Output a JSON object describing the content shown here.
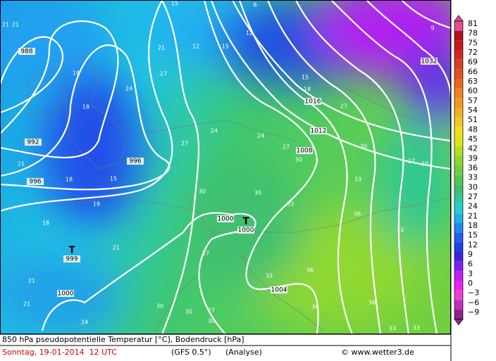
{
  "map": {
    "isobar_labels": [
      "988",
      "992",
      "996",
      "996",
      "1000",
      "1000",
      "1004",
      "1008",
      "1012",
      "1016",
      "1032"
    ],
    "lows": [
      {
        "symbol": "T",
        "pressure": "999"
      },
      {
        "symbol": "T",
        "pressure": "1000"
      }
    ],
    "temperature_labels": [
      "21",
      "21",
      "18",
      "21",
      "27",
      "24",
      "18",
      "21",
      "18",
      "15",
      "18",
      "18",
      "21",
      "21",
      "21",
      "24",
      "27",
      "24",
      "24",
      "27",
      "30",
      "30",
      "30",
      "33",
      "33",
      "36",
      "33",
      "27",
      "36",
      "33",
      "36",
      "36",
      "30",
      "30",
      "27",
      "30",
      "33",
      "33",
      "27",
      "30",
      "30",
      "27",
      "18",
      "15",
      "12",
      "12",
      "15",
      "9",
      "15",
      "6"
    ]
  },
  "colorbar": {
    "labels": [
      "81",
      "78",
      "75",
      "72",
      "69",
      "66",
      "63",
      "60",
      "57",
      "54",
      "51",
      "48",
      "45",
      "42",
      "39",
      "36",
      "33",
      "30",
      "27",
      "24",
      "21",
      "18",
      "15",
      "12",
      "9",
      "6",
      "3",
      "0",
      "−3",
      "−6",
      "−9"
    ],
    "colors": [
      "#e0508c",
      "#b01020",
      "#c81818",
      "#d02828",
      "#d84020",
      "#e05020",
      "#e86820",
      "#f08020",
      "#f09820",
      "#f0b020",
      "#f0c820",
      "#f0e020",
      "#d8e818",
      "#b0e020",
      "#90d830",
      "#70d040",
      "#50c850",
      "#40c070",
      "#30c8a0",
      "#20d0d0",
      "#20b0e8",
      "#2088f0",
      "#2060f0",
      "#2040e0",
      "#4020e0",
      "#8020f0",
      "#c020f0",
      "#f020f0",
      "#f040d0",
      "#c030c0",
      "#902090"
    ]
  },
  "caption": {
    "title": "850 hPa pseudopotentielle Temperatur [°C], Bodendruck [hPa]",
    "date": "Sonntag, 19-01-2014  12 UTC",
    "model": "(GFS 0.5°)",
    "run": "(Analyse)",
    "credit": "© www.wetter3.de"
  }
}
